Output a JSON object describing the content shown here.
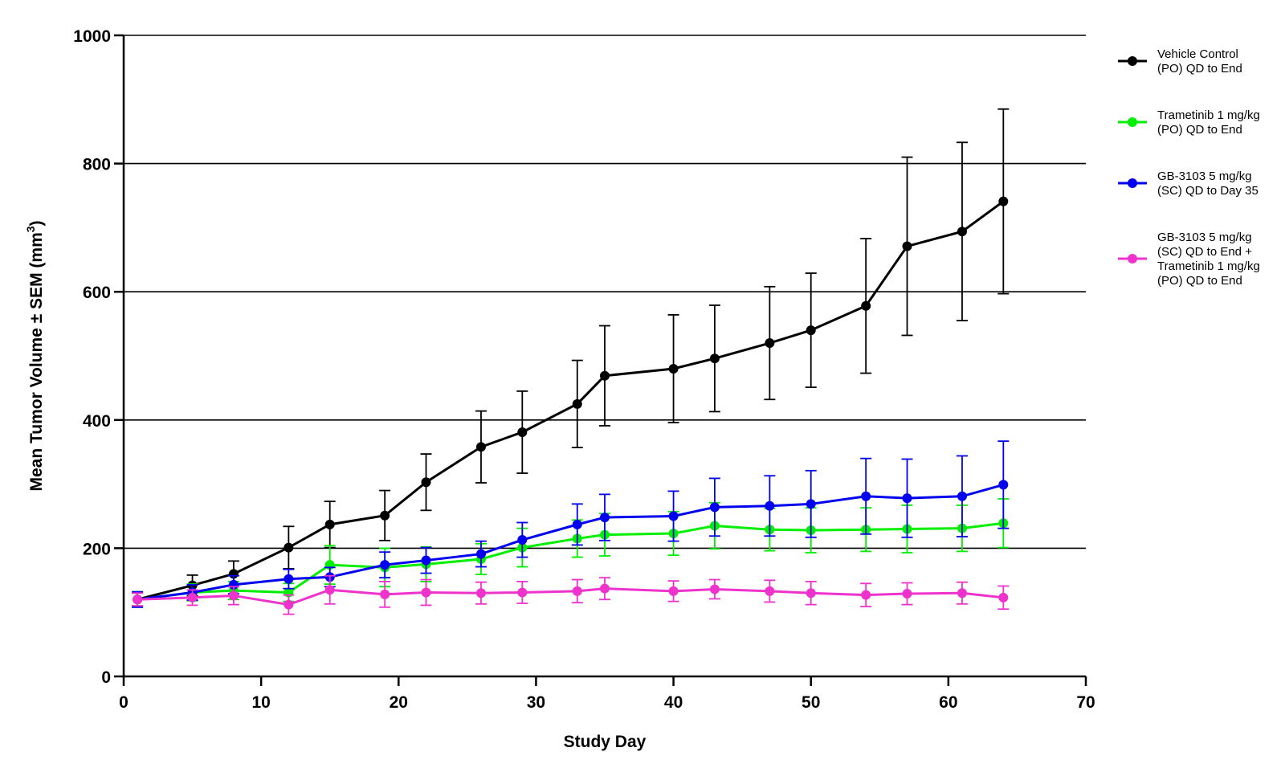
{
  "chart_data": {
    "type": "line",
    "title": "",
    "xlabel": "Study Day",
    "ylabel": "Mean Tumor Volume ± SEM (mm",
    "ylabel_superscript": "3",
    "ylabel_suffix": ")",
    "xlim": [
      0,
      70
    ],
    "ylim": [
      0,
      1000
    ],
    "x_ticks": [
      0,
      10,
      20,
      30,
      40,
      50,
      60,
      70
    ],
    "y_ticks": [
      0,
      200,
      400,
      600,
      800,
      1000
    ],
    "grid": "horizontal",
    "legend_position": "right",
    "series": [
      {
        "name": [
          "Vehicle Control",
          "(PO) QD to End"
        ],
        "color": "#000000",
        "x": [
          1,
          5,
          8,
          12,
          15,
          19,
          22,
          26,
          29,
          33,
          35,
          40,
          43,
          47,
          50,
          54,
          57,
          61,
          64
        ],
        "y": [
          120,
          142,
          160,
          201,
          237,
          251,
          303,
          358,
          381,
          425,
          469,
          480,
          496,
          520,
          540,
          578,
          671,
          694,
          741
        ],
        "err": [
          10,
          16,
          20,
          33,
          36,
          39,
          44,
          56,
          64,
          68,
          78,
          84,
          83,
          88,
          89,
          105,
          139,
          139,
          144
        ]
      },
      {
        "name": [
          "Trametinib 1 mg/kg",
          "(PO) QD to End"
        ],
        "color": "#00ee00",
        "x": [
          1,
          5,
          8,
          12,
          15,
          19,
          22,
          26,
          29,
          33,
          35,
          40,
          43,
          47,
          50,
          54,
          57,
          61,
          64
        ],
        "y": [
          120,
          131,
          134,
          131,
          174,
          170,
          175,
          183,
          201,
          215,
          221,
          223,
          235,
          229,
          228,
          229,
          230,
          231,
          239
        ],
        "err": [
          12,
          13,
          14,
          14,
          30,
          30,
          27,
          24,
          30,
          29,
          33,
          34,
          36,
          33,
          35,
          34,
          37,
          36,
          38
        ]
      },
      {
        "name": [
          "GB-3103 5 mg/kg",
          "(SC) QD to Day 35"
        ],
        "color": "#0000ee",
        "x": [
          1,
          5,
          8,
          12,
          15,
          19,
          22,
          26,
          29,
          33,
          35,
          40,
          43,
          47,
          50,
          54,
          57,
          61,
          64
        ],
        "y": [
          120,
          131,
          143,
          152,
          155,
          174,
          181,
          191,
          213,
          237,
          248,
          250,
          264,
          266,
          269,
          281,
          278,
          281,
          299
        ],
        "err": [
          12,
          12,
          14,
          15,
          15,
          20,
          20,
          20,
          27,
          32,
          36,
          39,
          45,
          47,
          52,
          59,
          61,
          63,
          68
        ]
      },
      {
        "name": [
          "GB-3103 5 mg/kg",
          "(SC) QD to End +",
          "Trametinib 1 mg/kg",
          "(PO) QD to End"
        ],
        "color": "#ee33cc",
        "x": [
          1,
          5,
          8,
          12,
          15,
          19,
          22,
          26,
          29,
          33,
          35,
          40,
          43,
          47,
          50,
          54,
          57,
          61,
          64
        ],
        "y": [
          120,
          123,
          126,
          112,
          135,
          128,
          131,
          130,
          131,
          133,
          137,
          133,
          136,
          133,
          130,
          127,
          129,
          130,
          123
        ],
        "err": [
          10,
          12,
          14,
          15,
          22,
          20,
          20,
          17,
          17,
          18,
          17,
          16,
          15,
          17,
          18,
          18,
          17,
          17,
          18
        ]
      }
    ]
  }
}
